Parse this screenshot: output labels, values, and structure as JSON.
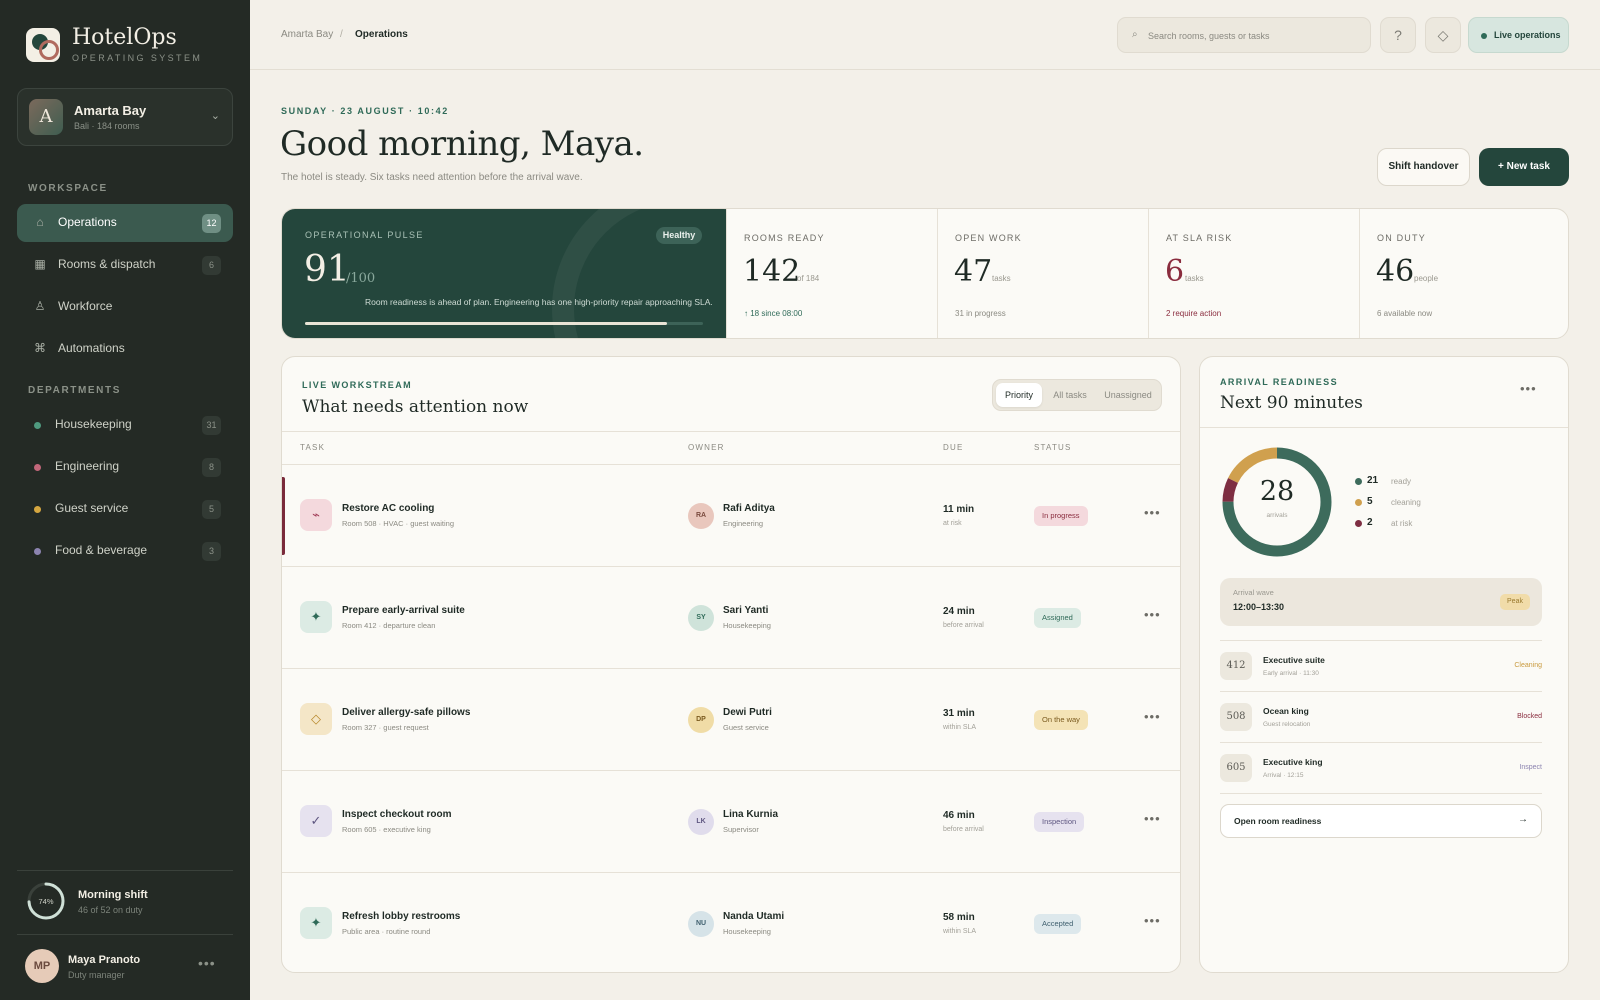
{
  "app": {
    "name": "HotelOps",
    "subtitle": "OPERATING SYSTEM"
  },
  "property": {
    "avatar": "A",
    "name": "Amarta Bay",
    "meta": "Bali · 184 rooms"
  },
  "sidebar": {
    "workspace_title": "WORKSPACE",
    "workspace": [
      {
        "label": "Operations",
        "count": "12",
        "icon": "home-icon"
      },
      {
        "label": "Rooms & dispatch",
        "count": "6",
        "icon": "grid-icon"
      },
      {
        "label": "Workforce",
        "icon": "person-icon"
      },
      {
        "label": "Automations",
        "icon": "command-icon"
      }
    ],
    "departments_title": "DEPARTMENTS",
    "departments": [
      {
        "label": "Housekeeping",
        "count": "31",
        "color": "#4f9a7f"
      },
      {
        "label": "Engineering",
        "count": "8",
        "color": "#c2677a"
      },
      {
        "label": "Guest service",
        "count": "5",
        "color": "#d4a640"
      },
      {
        "label": "Food & beverage",
        "count": "3",
        "color": "#8c84b0"
      }
    ],
    "shift": {
      "percent": 74,
      "percent_label": "74%",
      "title": "Morning shift",
      "sub": "46 of 52 on duty"
    },
    "user": {
      "initials": "MP",
      "name": "Maya Pranoto",
      "role": "Duty manager"
    }
  },
  "breadcrumb": {
    "parent": "Amarta Bay",
    "sep": "/",
    "current": "Operations"
  },
  "search": {
    "placeholder": "Search rooms, guests or tasks"
  },
  "topbar": {
    "help": "?",
    "live": "Live operations"
  },
  "hero": {
    "date": "SUNDAY · 23 AUGUST · 10:42",
    "greeting": "Good morning, Maya.",
    "sub": "The hotel is steady. Six tasks need attention before the arrival wave.",
    "btn_handover": "Shift handover",
    "btn_new": "+   New task"
  },
  "pulse": {
    "label": "OPERATIONAL PULSE",
    "badge": "Healthy",
    "value": "91",
    "of": "/100",
    "score": 91,
    "note": "Room readiness is ahead of plan. Engineering has one high-priority repair approaching SLA."
  },
  "kpis": [
    {
      "label": "ROOMS READY",
      "value": "142",
      "unit": "of 184",
      "sub": "↑ 18 since 08:00",
      "color": "#1f2a25",
      "sub_color": "#2f6a58"
    },
    {
      "label": "OPEN WORK",
      "value": "47",
      "unit": "tasks",
      "sub": "31 in progress",
      "color": "#1f2a25",
      "sub_color": "#8b8a82"
    },
    {
      "label": "AT SLA RISK",
      "value": "6",
      "unit": "tasks",
      "sub": "2 require action",
      "color": "#8a2c3e",
      "sub_color": "#8a2c3e"
    },
    {
      "label": "ON DUTY",
      "value": "46",
      "unit": "people",
      "sub": "6 available now",
      "color": "#1f2a25",
      "sub_color": "#8b8a82"
    }
  ],
  "workstream": {
    "kicker": "LIVE WORKSTREAM",
    "title": "What needs attention now",
    "tabs": [
      "Priority",
      "All tasks",
      "Unassigned"
    ],
    "columns": [
      "TASK",
      "OWNER",
      "DUE",
      "STATUS"
    ],
    "rows": [
      {
        "icon": "wave-icon",
        "glyph": "⌁",
        "icon_bg": "#f4d9dd",
        "icon_fg": "#a3405a",
        "task": "Restore AC cooling",
        "meta": "Room 508 · HVAC · guest waiting",
        "initials": "RA",
        "av_bg": "#e9c7bd",
        "av_fg": "#7a4a3e",
        "owner": "Rafi Aditya",
        "dept": "Engineering",
        "due": "11 min",
        "due_note": "at risk",
        "status": "In progress",
        "pill_bg": "#f4d9dd",
        "pill_fg": "#8a2c3e",
        "urgent": true
      },
      {
        "icon": "sparkle-icon",
        "glyph": "✦",
        "icon_bg": "#dcebe4",
        "icon_fg": "#2f6a58",
        "task": "Prepare early-arrival suite",
        "meta": "Room 412 · departure clean",
        "initials": "SY",
        "av_bg": "#cfe3da",
        "av_fg": "#2f6a58",
        "owner": "Sari Yanti",
        "dept": "Housekeeping",
        "due": "24 min",
        "due_note": "before arrival",
        "status": "Assigned",
        "pill_bg": "#dcebe4",
        "pill_fg": "#2f6a58"
      },
      {
        "icon": "diamond-icon",
        "glyph": "◇",
        "icon_bg": "#f4e6c7",
        "icon_fg": "#b8892d",
        "task": "Deliver allergy-safe pillows",
        "meta": "Room 327 · guest request",
        "initials": "DP",
        "av_bg": "#f0dca6",
        "av_fg": "#7a5a1e",
        "owner": "Dewi Putri",
        "dept": "Guest service",
        "due": "31 min",
        "due_note": "within SLA",
        "status": "On the way",
        "pill_bg": "#f4e3b6",
        "pill_fg": "#7a5a1e"
      },
      {
        "icon": "check-icon",
        "glyph": "✓",
        "icon_bg": "#e6e2ef",
        "icon_fg": "#5e5680",
        "task": "Inspect checkout room",
        "meta": "Room 605 · executive king",
        "initials": "LK",
        "av_bg": "#e0dcec",
        "av_fg": "#5e5680",
        "owner": "Lina Kurnia",
        "dept": "Supervisor",
        "due": "46 min",
        "due_note": "before arrival",
        "status": "Inspection",
        "pill_bg": "#e6e2ef",
        "pill_fg": "#5e5680"
      },
      {
        "icon": "sparkle-icon",
        "glyph": "✦",
        "icon_bg": "#dcebe4",
        "icon_fg": "#2f6a58",
        "task": "Refresh lobby restrooms",
        "meta": "Public area · routine round",
        "initials": "NU",
        "av_bg": "#d6e3e8",
        "av_fg": "#3f5f6e",
        "owner": "Nanda Utami",
        "dept": "Housekeeping",
        "due": "58 min",
        "due_note": "within SLA",
        "status": "Accepted",
        "pill_bg": "#dde8ec",
        "pill_fg": "#3f5f6e"
      }
    ]
  },
  "arrival": {
    "kicker": "ARRIVAL READINESS",
    "title": "Next 90 minutes",
    "total": "28",
    "total_label": "arrivals",
    "legend": [
      {
        "value": 21,
        "label": "ready",
        "color": "#3d6b5c"
      },
      {
        "value": 5,
        "label": "cleaning",
        "color": "#d0a04e"
      },
      {
        "value": 2,
        "label": "at risk",
        "color": "#7e2e42"
      }
    ],
    "wave": {
      "label": "Arrival wave",
      "time": "12:00–13:30",
      "badge": "Peak"
    },
    "rooms": [
      {
        "num": "412",
        "name": "Executive suite",
        "sub": "Early arrival · 11:30",
        "status": "Cleaning",
        "color": "#c99a3e"
      },
      {
        "num": "508",
        "name": "Ocean king",
        "sub": "Guest relocation",
        "status": "Blocked",
        "color": "#8a2c3e"
      },
      {
        "num": "605",
        "name": "Executive king",
        "sub": "Arrival · 12:15",
        "status": "Inspect",
        "color": "#8c84b0"
      }
    ],
    "open_btn": "Open room readiness",
    "open_arrow": "→"
  }
}
